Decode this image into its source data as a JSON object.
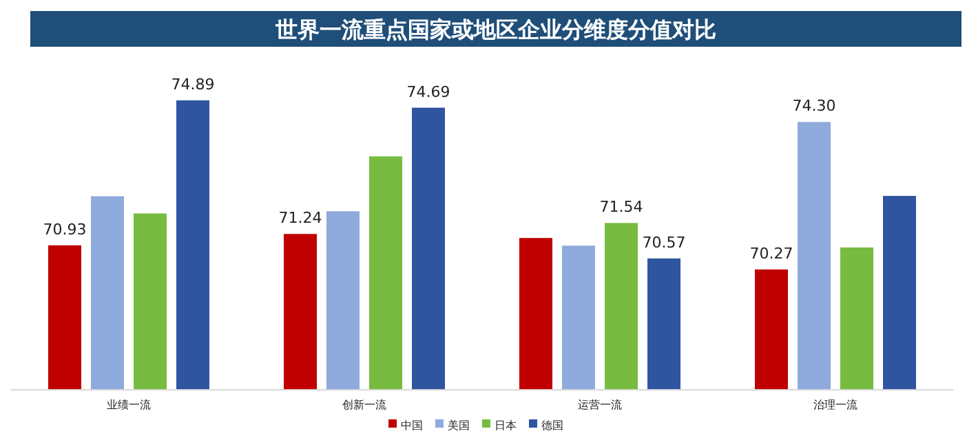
{
  "chart_data": {
    "type": "bar",
    "title": "世界一流重点国家或地区企业分维度分值对比",
    "categories": [
      "业绩一流",
      "创新一流",
      "运营一流",
      "治理一流"
    ],
    "ylim": [
      67,
      74.89
    ],
    "tick_labels": "x",
    "legend": "bottom",
    "series": [
      {
        "name": "中国",
        "color": "#c00000",
        "values": [
          70.93,
          71.24,
          71.13,
          70.27
        ],
        "value_labels": [
          "70.93",
          "71.24",
          null,
          "70.27"
        ]
      },
      {
        "name": "美国",
        "color": "#8faadc",
        "values": [
          72.27,
          71.86,
          70.92,
          74.3
        ],
        "value_labels": [
          null,
          null,
          null,
          "74.30"
        ]
      },
      {
        "name": "日本",
        "color": "#77bc41",
        "values": [
          71.8,
          73.36,
          71.54,
          70.87
        ],
        "value_labels": [
          null,
          null,
          "71.54",
          null
        ]
      },
      {
        "name": "德国",
        "color": "#2f54a0",
        "values": [
          74.89,
          74.69,
          70.57,
          72.28
        ],
        "value_labels": [
          "74.89",
          "74.69",
          "70.57",
          null
        ]
      }
    ]
  }
}
